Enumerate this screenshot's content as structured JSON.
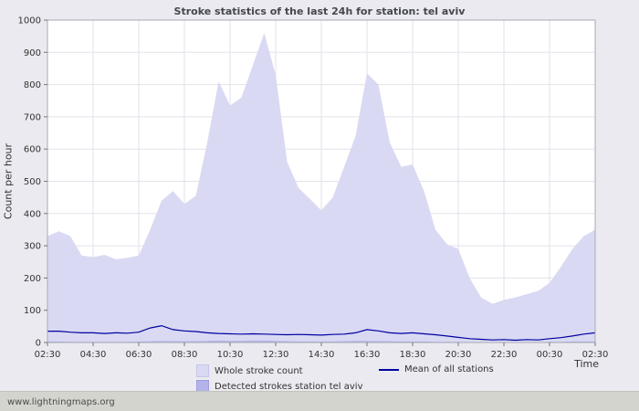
{
  "header": {
    "title": "Stroke statistics of the last 24h for station: tel aviv"
  },
  "axes": {
    "y_label": "Count per hour",
    "x_label": "Time"
  },
  "legend": [
    {
      "label": "Whole stroke count",
      "type": "area",
      "color": "#d9d9f3"
    },
    {
      "label": "Detected strokes station tel aviv",
      "type": "area",
      "color": "#b3b3ea"
    },
    {
      "label": "Mean of all stations",
      "type": "line",
      "color": "#0000a0"
    }
  ],
  "footer": {
    "site": "www.lightningmaps.org"
  },
  "chart_data": {
    "type": "area",
    "title": "Stroke statistics of the last 24h for station: tel aviv",
    "xlabel": "Time",
    "ylabel": "Count per hour",
    "ylim": [
      0,
      1000
    ],
    "y_ticks": [
      0,
      100,
      200,
      300,
      400,
      500,
      600,
      700,
      800,
      900,
      1000
    ],
    "x_start": "02:30",
    "x_interval_minutes": 30,
    "x_tick_labels": [
      "02:30",
      "04:30",
      "06:30",
      "08:30",
      "10:30",
      "12:30",
      "14:30",
      "16:30",
      "18:30",
      "20:30",
      "22:30",
      "00:30",
      "02:30"
    ],
    "grid": true,
    "legend_position": "bottom",
    "series": [
      {
        "name": "Whole stroke count",
        "kind": "area",
        "color": "#d9d9f3",
        "values": [
          330,
          345,
          330,
          270,
          265,
          272,
          258,
          263,
          270,
          350,
          440,
          470,
          430,
          455,
          620,
          810,
          735,
          760,
          860,
          960,
          830,
          560,
          480,
          445,
          410,
          450,
          545,
          640,
          835,
          800,
          620,
          545,
          552,
          470,
          350,
          305,
          290,
          200,
          140,
          120,
          132,
          140,
          150,
          160,
          185,
          235,
          290,
          330,
          350
        ]
      },
      {
        "name": "Detected strokes station tel aviv",
        "kind": "area",
        "color": "#b3b3ea",
        "values": [
          3,
          3,
          2,
          2,
          2,
          2,
          2,
          2,
          3,
          4,
          5,
          4,
          4,
          4,
          5,
          6,
          5,
          5,
          6,
          6,
          5,
          4,
          3,
          3,
          3,
          3,
          4,
          5,
          5,
          4,
          4,
          3,
          3,
          3,
          2,
          2,
          2,
          1,
          1,
          1,
          1,
          1,
          1,
          1,
          2,
          2,
          3,
          3,
          3
        ]
      },
      {
        "name": "Mean of all stations",
        "kind": "line",
        "color": "#0000a0",
        "values": [
          35,
          35,
          32,
          30,
          30,
          28,
          30,
          29,
          32,
          45,
          52,
          40,
          36,
          34,
          30,
          28,
          27,
          26,
          27,
          26,
          25,
          24,
          25,
          24,
          23,
          25,
          26,
          30,
          40,
          36,
          30,
          28,
          30,
          27,
          24,
          20,
          16,
          12,
          10,
          8,
          9,
          7,
          9,
          8,
          12,
          15,
          20,
          26,
          30
        ]
      }
    ]
  }
}
